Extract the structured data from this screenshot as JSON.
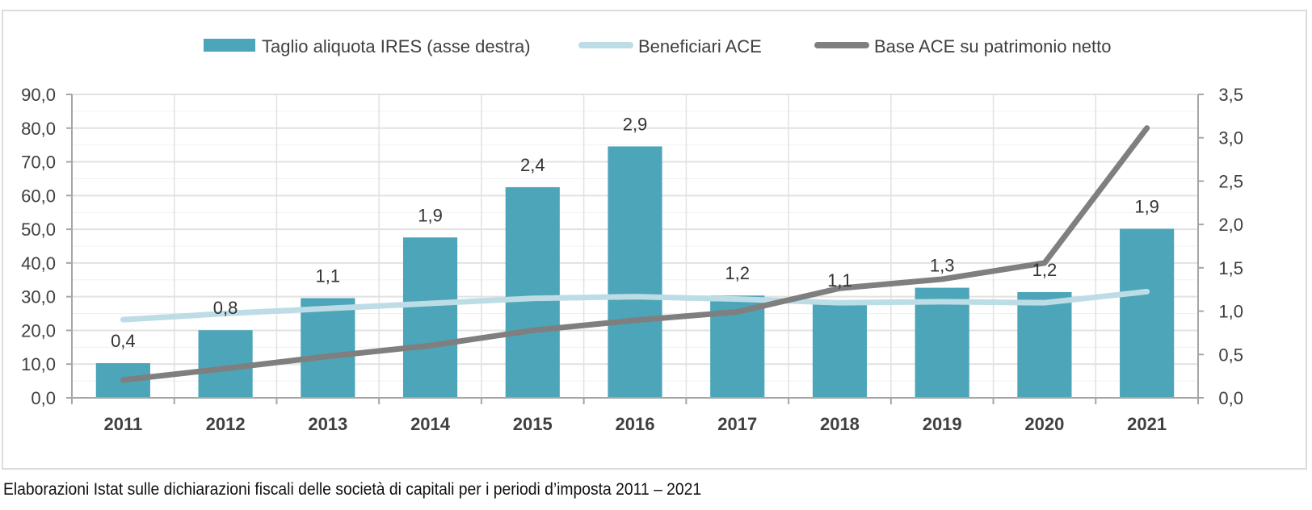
{
  "caption": "Elaborazioni Istat sulle dichiarazioni fiscali delle società di capitali per i periodi d’imposta 2011 – 2021",
  "colors": {
    "bar": "#4ca5b8",
    "beneficiari": "#bddde6",
    "base": "#7f7f7f",
    "grid": "#e2e2e2",
    "axis": "#a6a6a6"
  },
  "chart_data": {
    "type": "bar+line",
    "title": "",
    "categories": [
      "2011",
      "2012",
      "2013",
      "2014",
      "2015",
      "2016",
      "2017",
      "2018",
      "2019",
      "2020",
      "2021"
    ],
    "legend": {
      "placement": "top",
      "entries": [
        "Taglio aliquota IRES (asse destra)",
        "Beneficiari ACE",
        "Base ACE su patrimonio netto"
      ]
    },
    "left_axis": {
      "ylim": [
        0,
        90
      ],
      "ticks": [
        "0,0",
        "10,0",
        "20,0",
        "30,0",
        "40,0",
        "50,0",
        "60,0",
        "70,0",
        "80,0",
        "90,0"
      ]
    },
    "right_axis": {
      "ylim": [
        0,
        3.5
      ],
      "ticks": [
        "0,0",
        "0,5",
        "1,0",
        "1,5",
        "2,0",
        "2,5",
        "3,0",
        "3,5"
      ]
    },
    "grid": true,
    "series": [
      {
        "name": "Taglio aliquota IRES (asse destra)",
        "type": "bar",
        "axis": "right",
        "values": [
          0.4,
          0.78,
          1.15,
          1.85,
          2.43,
          2.9,
          1.18,
          1.1,
          1.27,
          1.22,
          1.95
        ],
        "labels": [
          "0,4",
          "0,8",
          "1,1",
          "1,9",
          "2,4",
          "2,9",
          "1,2",
          "1,1",
          "1,3",
          "1,2",
          "1,9"
        ]
      },
      {
        "name": "Beneficiari ACE",
        "type": "line",
        "axis": "left",
        "values": [
          23.2,
          25.0,
          26.5,
          28.0,
          29.5,
          30.0,
          29.3,
          28.2,
          28.5,
          28.2,
          31.5
        ]
      },
      {
        "name": "Base ACE su patrimonio netto",
        "type": "line",
        "axis": "left",
        "values": [
          5.3,
          8.7,
          12.3,
          15.5,
          20.0,
          23.0,
          25.5,
          32.5,
          35.2,
          40.0,
          80.0
        ]
      }
    ]
  }
}
